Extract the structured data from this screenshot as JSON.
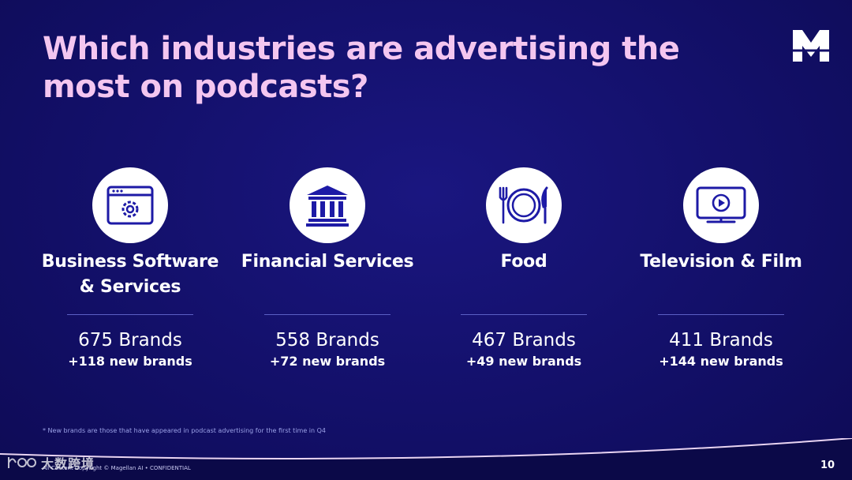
{
  "slide": {
    "title": "Which industries are advertising the most on podcasts?",
    "page_number": "10",
    "footnote": "* New brands are those that have appeared in podcast advertising for the first time in Q4",
    "copyright": "All Content Copyright © Magellan AI • CONFIDENTIAL",
    "watermark_text": "大数跨境",
    "logo_letter": "M"
  },
  "colors": {
    "background": "#120f69",
    "title": "#f4c6f0",
    "icon": "#1d1aa6",
    "rule": "#5b5fc4"
  },
  "industries": [
    {
      "name": "Business Software & Services",
      "icon": "browser-gear-icon",
      "brands": "675 Brands",
      "new_brands": "+118 new brands"
    },
    {
      "name": "Financial Services",
      "icon": "bank-icon",
      "brands": "558 Brands",
      "new_brands": "+72 new brands"
    },
    {
      "name": "Food",
      "icon": "plate-cutlery-icon",
      "brands": "467 Brands",
      "new_brands": "+49 new brands"
    },
    {
      "name": "Television & Film",
      "icon": "tv-play-icon",
      "brands": "411 Brands",
      "new_brands": "+144 new brands"
    }
  ]
}
